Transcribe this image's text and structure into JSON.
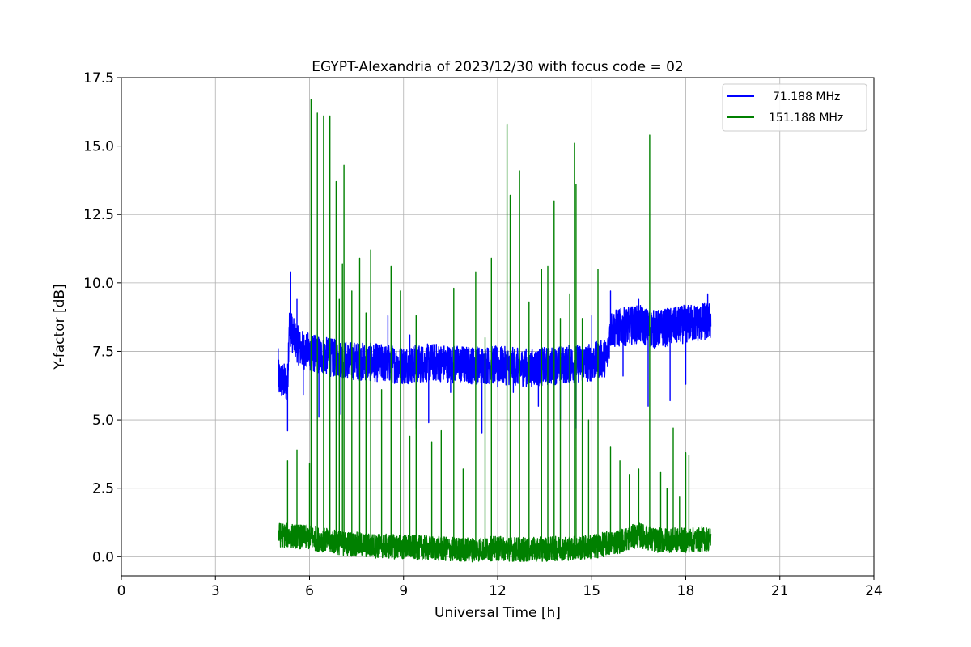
{
  "chart_data": {
    "type": "line",
    "title": "EGYPT-Alexandria of 2023/12/30 with focus code = 02",
    "xlabel": "Universal Time [h]",
    "ylabel": "Y-factor [dB]",
    "xlim": [
      0,
      24
    ],
    "ylim": [
      -0.7,
      17.5
    ],
    "xticks": [
      0,
      3,
      6,
      9,
      12,
      15,
      18,
      21,
      24
    ],
    "xtick_labels": [
      "0",
      "3",
      "6",
      "9",
      "12",
      "15",
      "18",
      "21",
      "24"
    ],
    "yticks": [
      0.0,
      2.5,
      5.0,
      7.5,
      10.0,
      12.5,
      15.0,
      17.5
    ],
    "ytick_labels": [
      "0.0",
      "2.5",
      "5.0",
      "7.5",
      "10.0",
      "12.5",
      "15.0",
      "17.5"
    ],
    "grid": true,
    "legend_position": "top-right",
    "series": [
      {
        "name": "71.188 MHz",
        "color": "#0000ff",
        "baseline": [
          [
            5.0,
            6.5
          ],
          [
            5.3,
            6.3
          ],
          [
            5.35,
            8.5
          ],
          [
            5.5,
            8.0
          ],
          [
            5.7,
            7.6
          ],
          [
            6.2,
            7.4
          ],
          [
            7.0,
            7.2
          ],
          [
            8.0,
            7.1
          ],
          [
            9.0,
            7.0
          ],
          [
            10.0,
            7.1
          ],
          [
            11.0,
            7.0
          ],
          [
            12.0,
            7.0
          ],
          [
            13.0,
            6.9
          ],
          [
            14.0,
            7.0
          ],
          [
            15.0,
            7.1
          ],
          [
            15.5,
            7.3
          ],
          [
            15.6,
            8.3
          ],
          [
            16.5,
            8.5
          ],
          [
            17.0,
            8.3
          ],
          [
            18.0,
            8.5
          ],
          [
            18.8,
            8.6
          ]
        ],
        "spikes": [
          [
            5.0,
            7.6
          ],
          [
            5.3,
            4.6
          ],
          [
            5.4,
            10.4
          ],
          [
            5.6,
            9.4
          ],
          [
            5.8,
            5.9
          ],
          [
            6.3,
            5.1
          ],
          [
            7.0,
            5.2
          ],
          [
            8.5,
            8.8
          ],
          [
            9.2,
            8.1
          ],
          [
            9.4,
            4.7
          ],
          [
            9.8,
            4.9
          ],
          [
            10.5,
            6.0
          ],
          [
            11.5,
            4.5
          ],
          [
            12.0,
            6.2
          ],
          [
            12.5,
            6.0
          ],
          [
            13.0,
            6.4
          ],
          [
            13.3,
            5.5
          ],
          [
            14.0,
            5.0
          ],
          [
            14.5,
            4.7
          ],
          [
            15.0,
            8.8
          ],
          [
            15.6,
            9.7
          ],
          [
            16.0,
            6.6
          ],
          [
            16.5,
            9.4
          ],
          [
            16.8,
            5.5
          ],
          [
            17.5,
            5.7
          ],
          [
            18.0,
            6.3
          ],
          [
            18.7,
            9.6
          ]
        ],
        "band": 0.7
      },
      {
        "name": "151.188 MHz",
        "color": "#008000",
        "baseline": [
          [
            5.0,
            0.8
          ],
          [
            6.0,
            0.7
          ],
          [
            7.0,
            0.5
          ],
          [
            8.0,
            0.4
          ],
          [
            9.0,
            0.35
          ],
          [
            10.0,
            0.3
          ],
          [
            11.0,
            0.25
          ],
          [
            12.0,
            0.3
          ],
          [
            13.0,
            0.25
          ],
          [
            14.0,
            0.3
          ],
          [
            15.0,
            0.35
          ],
          [
            16.0,
            0.6
          ],
          [
            16.5,
            0.8
          ],
          [
            17.0,
            0.6
          ],
          [
            18.0,
            0.6
          ],
          [
            18.8,
            0.65
          ]
        ],
        "spikes": [
          [
            5.3,
            3.5
          ],
          [
            5.6,
            3.9
          ],
          [
            6.0,
            3.4
          ],
          [
            6.05,
            16.7
          ],
          [
            6.25,
            16.2
          ],
          [
            6.45,
            16.1
          ],
          [
            6.65,
            16.1
          ],
          [
            6.85,
            13.7
          ],
          [
            6.95,
            9.4
          ],
          [
            7.05,
            10.7
          ],
          [
            7.1,
            14.3
          ],
          [
            7.35,
            9.7
          ],
          [
            7.6,
            10.9
          ],
          [
            7.8,
            8.9
          ],
          [
            7.95,
            11.2
          ],
          [
            8.3,
            6.1
          ],
          [
            8.6,
            10.6
          ],
          [
            8.9,
            9.7
          ],
          [
            9.2,
            4.4
          ],
          [
            9.4,
            8.8
          ],
          [
            9.9,
            4.2
          ],
          [
            10.2,
            4.6
          ],
          [
            10.6,
            9.8
          ],
          [
            10.9,
            3.2
          ],
          [
            11.3,
            10.4
          ],
          [
            11.6,
            8.0
          ],
          [
            11.8,
            10.9
          ],
          [
            12.3,
            15.8
          ],
          [
            12.4,
            13.2
          ],
          [
            12.7,
            14.1
          ],
          [
            13.0,
            9.3
          ],
          [
            13.4,
            10.5
          ],
          [
            13.6,
            10.6
          ],
          [
            13.8,
            13.0
          ],
          [
            14.0,
            8.7
          ],
          [
            14.3,
            9.6
          ],
          [
            14.45,
            15.1
          ],
          [
            14.5,
            13.6
          ],
          [
            14.7,
            8.7
          ],
          [
            14.9,
            5.0
          ],
          [
            15.2,
            10.5
          ],
          [
            15.6,
            4.0
          ],
          [
            15.9,
            3.5
          ],
          [
            16.2,
            3.0
          ],
          [
            16.5,
            3.2
          ],
          [
            16.85,
            15.4
          ],
          [
            17.2,
            3.1
          ],
          [
            17.4,
            2.5
          ],
          [
            17.6,
            4.7
          ],
          [
            17.8,
            2.2
          ],
          [
            18.0,
            3.8
          ],
          [
            18.1,
            3.7
          ]
        ],
        "band": 0.45
      }
    ]
  }
}
